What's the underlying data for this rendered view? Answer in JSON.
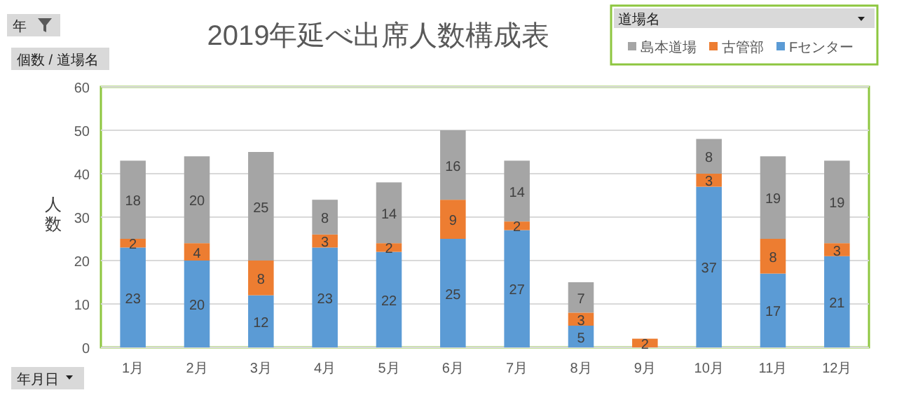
{
  "chart_data": {
    "type": "bar",
    "stacked": true,
    "title": "2019年延べ出席人数構成表",
    "ylabel": "人数",
    "legend_title": "道場名",
    "legend": "top right",
    "grid": "y",
    "data_labels": true,
    "categories": [
      "1月",
      "2月",
      "3月",
      "4月",
      "5月",
      "6月",
      "7月",
      "8月",
      "9月",
      "10月",
      "11月",
      "12月"
    ],
    "ylim": [
      0,
      60
    ],
    "yticks": [
      0,
      10,
      20,
      30,
      40,
      50,
      60
    ],
    "series": [
      {
        "name": "Fセンター",
        "color": "#5b9bd5",
        "values": [
          23,
          20,
          12,
          23,
          22,
          25,
          27,
          5,
          null,
          37,
          17,
          21
        ]
      },
      {
        "name": "古管部",
        "color": "#ed7d31",
        "values": [
          2,
          4,
          8,
          3,
          2,
          9,
          2,
          3,
          2,
          3,
          8,
          3
        ]
      },
      {
        "name": "島本道場",
        "color": "#a5a5a5",
        "values": [
          18,
          20,
          25,
          8,
          14,
          16,
          14,
          7,
          null,
          8,
          19,
          19
        ]
      }
    ],
    "annotations": [
      "年",
      "個数 / 道場名",
      "年月日"
    ]
  }
}
